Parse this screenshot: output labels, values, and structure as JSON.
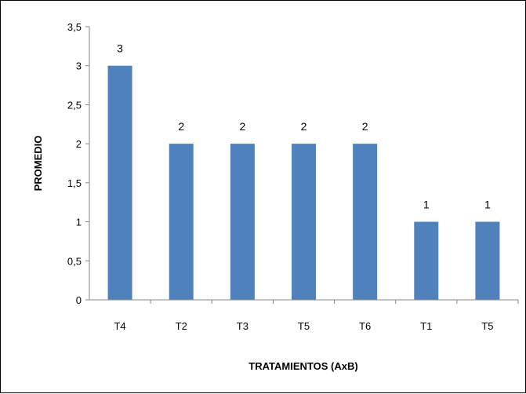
{
  "chart_data": {
    "type": "bar",
    "title": "",
    "xlabel": "TRATAMIENTOS (AxB)",
    "ylabel": "PROMEDIO",
    "categories": [
      "T4",
      "T2",
      "T3",
      "T5",
      "T6",
      "T1",
      "T5"
    ],
    "values": [
      3,
      2,
      2,
      2,
      2,
      1,
      1
    ],
    "data_labels": [
      "3",
      "2",
      "2",
      "2",
      "2",
      "1",
      "1"
    ],
    "ylim": [
      0,
      3.5
    ],
    "yticks": [
      0,
      0.5,
      1,
      1.5,
      2,
      2.5,
      3,
      3.5
    ],
    "ytick_labels": [
      "0",
      "0,5",
      "1",
      "1,5",
      "2",
      "2,5",
      "3",
      "3,5"
    ],
    "grid": false,
    "legend": "none",
    "bar_color": "#4F81BD"
  }
}
